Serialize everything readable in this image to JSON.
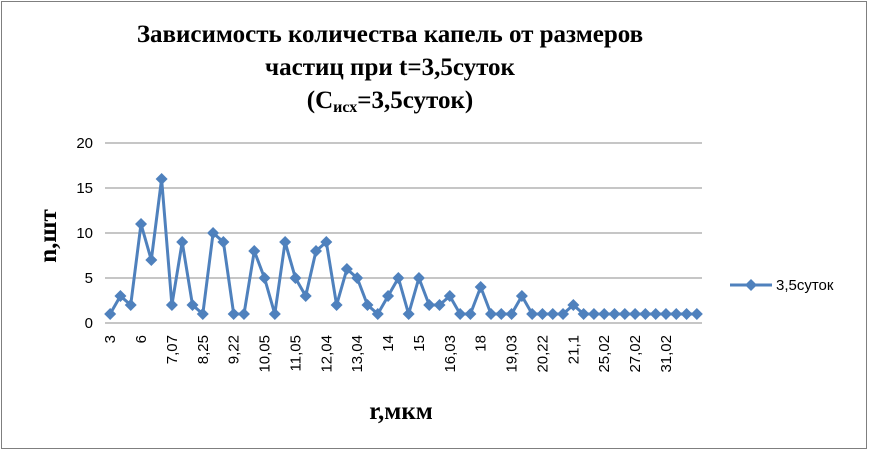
{
  "chart_data": {
    "type": "line",
    "title_line1": "Зависимость количества капель от размеров",
    "title_line2": "частиц при t=3,5суток",
    "title_line3_prefix": "(C",
    "title_line3_sub": "исх",
    "title_line3_suffix": "=3,5суток)",
    "xlabel": "r,мкм",
    "ylabel": "n,шт",
    "ylim": [
      0,
      20
    ],
    "yticks": [
      0,
      5,
      10,
      15,
      20
    ],
    "grid": "horizontal",
    "legend_position": "right",
    "series_color": "#4f81bd",
    "x_labels_shown": [
      "3",
      "6",
      "7,07",
      "8,25",
      "9,22",
      "10,05",
      "11,05",
      "12,04",
      "13,04",
      "14",
      "15",
      "16,03",
      "18",
      "19,03",
      "20,22",
      "21,1",
      "25,02",
      "27,02",
      "31,02"
    ],
    "x_label_every": 3,
    "series": [
      {
        "name": "3,5суток",
        "values": [
          1,
          3,
          2,
          11,
          7,
          16,
          2,
          9,
          2,
          1,
          10,
          9,
          1,
          1,
          8,
          5,
          1,
          9,
          5,
          3,
          8,
          9,
          2,
          6,
          5,
          2,
          1,
          3,
          5,
          1,
          5,
          2,
          2,
          3,
          1,
          1,
          4,
          1,
          1,
          1,
          3,
          1,
          1,
          1,
          1,
          2,
          1,
          1,
          1,
          1,
          1,
          1,
          1,
          1,
          1,
          1,
          1,
          1
        ]
      }
    ]
  }
}
